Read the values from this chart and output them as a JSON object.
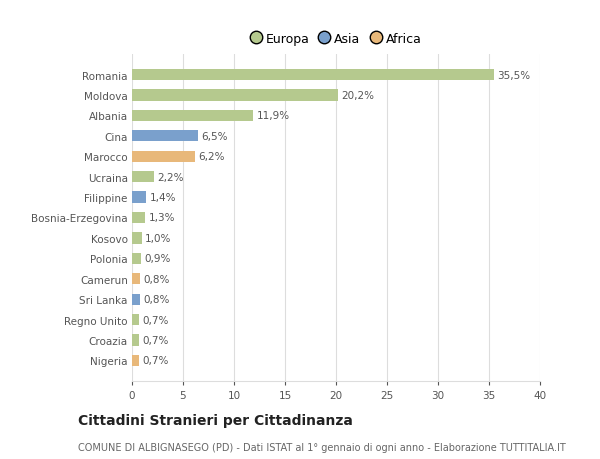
{
  "categories": [
    "Romania",
    "Moldova",
    "Albania",
    "Cina",
    "Marocco",
    "Ucraina",
    "Filippine",
    "Bosnia-Erzegovina",
    "Kosovo",
    "Polonia",
    "Camerun",
    "Sri Lanka",
    "Regno Unito",
    "Croazia",
    "Nigeria"
  ],
  "values": [
    35.5,
    20.2,
    11.9,
    6.5,
    6.2,
    2.2,
    1.4,
    1.3,
    1.0,
    0.9,
    0.8,
    0.8,
    0.7,
    0.7,
    0.7
  ],
  "labels": [
    "35,5%",
    "20,2%",
    "11,9%",
    "6,5%",
    "6,2%",
    "2,2%",
    "1,4%",
    "1,3%",
    "1,0%",
    "0,9%",
    "0,8%",
    "0,8%",
    "0,7%",
    "0,7%",
    "0,7%"
  ],
  "continents": [
    "Europa",
    "Europa",
    "Europa",
    "Asia",
    "Africa",
    "Europa",
    "Asia",
    "Europa",
    "Europa",
    "Europa",
    "Africa",
    "Asia",
    "Europa",
    "Europa",
    "Africa"
  ],
  "colors": {
    "Europa": "#b5c98e",
    "Asia": "#7aa0cc",
    "Africa": "#e8b87a"
  },
  "xlim": [
    0,
    40
  ],
  "xticks": [
    0,
    5,
    10,
    15,
    20,
    25,
    30,
    35,
    40
  ],
  "title": "Cittadini Stranieri per Cittadinanza",
  "subtitle": "COMUNE DI ALBIGNASEGO (PD) - Dati ISTAT al 1° gennaio di ogni anno - Elaborazione TUTTITALIA.IT",
  "background_color": "#ffffff",
  "grid_color": "#dddddd",
  "bar_height": 0.55,
  "label_fontsize": 7.5,
  "tick_fontsize": 7.5,
  "title_fontsize": 10,
  "subtitle_fontsize": 7
}
